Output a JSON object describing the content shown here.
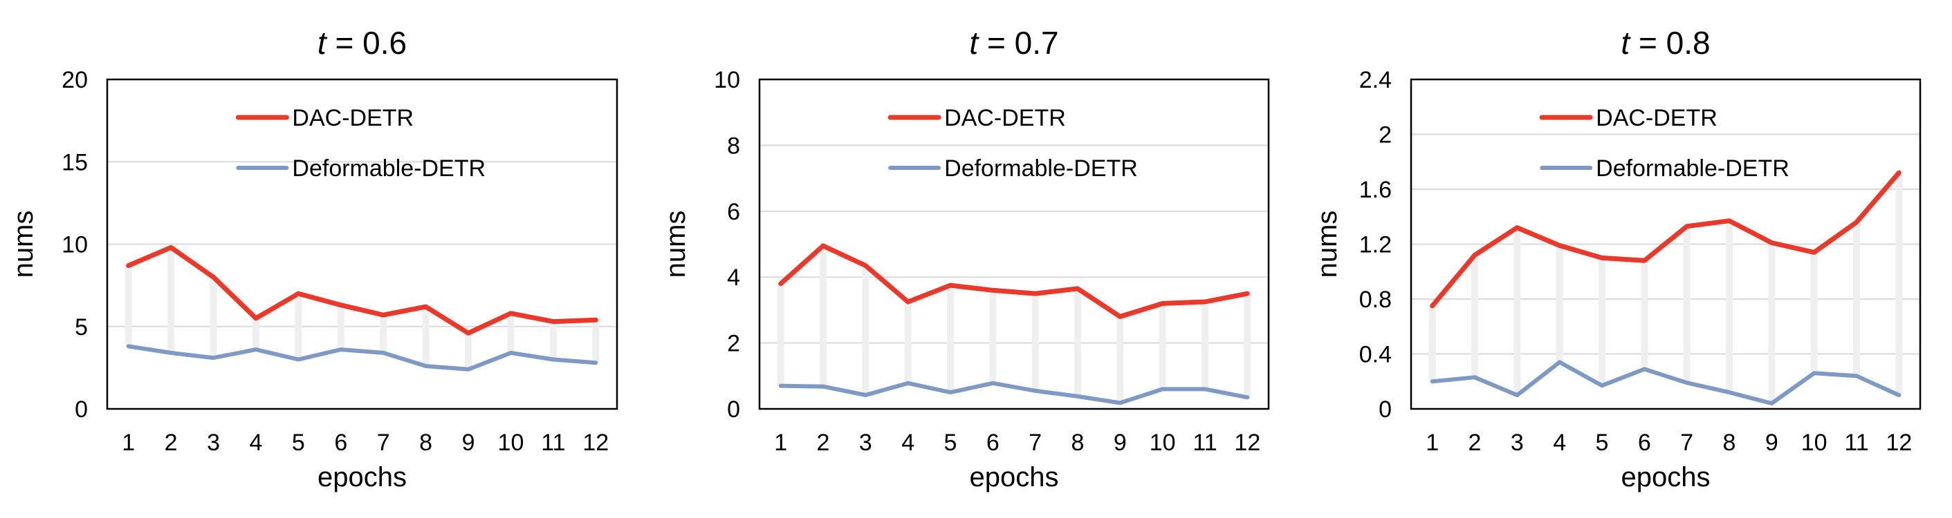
{
  "chart_data": [
    {
      "type": "line",
      "title_var": "t",
      "title_rest": " = 0.6",
      "xlabel": "epochs",
      "ylabel": "nums",
      "x": [
        1,
        2,
        3,
        4,
        5,
        6,
        7,
        8,
        9,
        10,
        11,
        12
      ],
      "ylim": [
        0,
        20
      ],
      "yticks": [
        "0",
        "5",
        "10",
        "15",
        "20"
      ],
      "grid": true,
      "legend": "top-right",
      "series": [
        {
          "name": "DAC-DETR",
          "color": "#e8392b",
          "values": [
            8.7,
            9.8,
            8.0,
            5.5,
            7.0,
            6.3,
            5.7,
            6.2,
            4.6,
            5.8,
            5.3,
            5.4
          ]
        },
        {
          "name": "Deformable-DETR",
          "color": "#7f99c6",
          "values": [
            3.8,
            3.4,
            3.1,
            3.6,
            3.0,
            3.6,
            3.4,
            2.6,
            2.4,
            3.4,
            3.0,
            2.8
          ]
        }
      ]
    },
    {
      "type": "line",
      "title_var": "t",
      "title_rest": " = 0.7",
      "xlabel": "epochs",
      "ylabel": "nums",
      "x": [
        1,
        2,
        3,
        4,
        5,
        6,
        7,
        8,
        9,
        10,
        11,
        12
      ],
      "ylim": [
        0,
        10
      ],
      "yticks": [
        "0",
        "2",
        "4",
        "6",
        "8",
        "10"
      ],
      "grid": true,
      "legend": "top-right",
      "series": [
        {
          "name": "DAC-DETR",
          "color": "#e8392b",
          "values": [
            3.8,
            4.95,
            4.35,
            3.25,
            3.75,
            3.6,
            3.5,
            3.65,
            2.8,
            3.2,
            3.25,
            3.5
          ]
        },
        {
          "name": "Deformable-DETR",
          "color": "#7f99c6",
          "values": [
            0.7,
            0.68,
            0.42,
            0.78,
            0.5,
            0.78,
            0.55,
            0.38,
            0.18,
            0.6,
            0.6,
            0.35
          ]
        }
      ]
    },
    {
      "type": "line",
      "title_var": "t",
      "title_rest": " = 0.8",
      "xlabel": "epochs",
      "ylabel": "nums",
      "x": [
        1,
        2,
        3,
        4,
        5,
        6,
        7,
        8,
        9,
        10,
        11,
        12
      ],
      "ylim": [
        0,
        2.4
      ],
      "yticks": [
        "0",
        "0.4",
        "0.8",
        "1.2",
        "1.6",
        "2",
        "2.4"
      ],
      "grid": true,
      "legend": "top-right",
      "series": [
        {
          "name": "DAC-DETR",
          "color": "#e8392b",
          "values": [
            0.75,
            1.12,
            1.32,
            1.19,
            1.1,
            1.08,
            1.33,
            1.37,
            1.21,
            1.14,
            1.36,
            1.72
          ]
        },
        {
          "name": "Deformable-DETR",
          "color": "#7f99c6",
          "values": [
            0.2,
            0.23,
            0.1,
            0.34,
            0.17,
            0.29,
            0.19,
            0.12,
            0.04,
            0.26,
            0.24,
            0.1
          ]
        }
      ]
    }
  ]
}
